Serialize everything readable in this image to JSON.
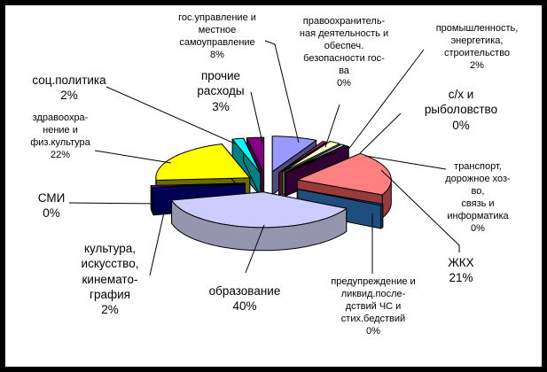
{
  "chart_data": {
    "type": "pie",
    "style": "3d-exploded",
    "title": "",
    "unit": "%",
    "legend_position": "none",
    "slice_order": "clockwise-from-top",
    "total_pct": 100,
    "slices": [
      {
        "label": "гос.управление и\nместное\nсамоуправление",
        "pct": 8,
        "color": "#9999FF"
      },
      {
        "label": "правоохранитель-\nная деятельность и\nобеспеч.\nбезопасности гос-\nва",
        "pct": 0,
        "color": "#993366"
      },
      {
        "label": "промышленность,\nэнергетика,\nстроительство",
        "pct": 2,
        "color": "#FFFFCC"
      },
      {
        "label": "с/х и\nрыболовство",
        "pct": 0,
        "color": "#CCFFFF"
      },
      {
        "label": "транспорт,\nдорожное хоз-во,\nсвязь и\nинформатика",
        "pct": 0,
        "color": "#660066"
      },
      {
        "label": "ЖКХ",
        "pct": 21,
        "color": "#FF8080"
      },
      {
        "label": "предупреждение и\nликвид.после-\nдствий ЧС и\nстих.бедствий",
        "pct": 0,
        "color": "#0066CC"
      },
      {
        "label": "образование",
        "pct": 40,
        "color": "#CCCCFF"
      },
      {
        "label": "культура,\nискусство,\nкинемато-\nграфия",
        "pct": 2,
        "color": "#000080"
      },
      {
        "label": "СМИ",
        "pct": 0,
        "color": "#FF00FF"
      },
      {
        "label": "здравоохра-\nнение и\nфиз.культура",
        "pct": 22,
        "color": "#FFFF00"
      },
      {
        "label": "соц.политика",
        "pct": 2,
        "color": "#00FFFF"
      },
      {
        "label": "прочие\nрасходы",
        "pct": 3,
        "color": "#800080"
      }
    ]
  },
  "frame": {
    "background": "#FFFFFF",
    "border_color": "#000000",
    "line_color": "#000000"
  }
}
